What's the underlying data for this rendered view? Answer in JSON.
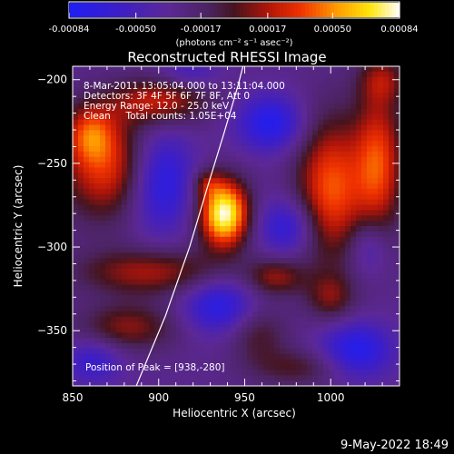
{
  "chart_data": {
    "type": "heatmap",
    "title": "Reconstructed RHESSI Image",
    "xlabel": "Heliocentric X (arcsec)",
    "ylabel": "Heliocentric Y (arcsec)",
    "xlim": [
      850,
      1040
    ],
    "ylim": [
      -383,
      -192
    ],
    "x_ticks": [
      850,
      900,
      950,
      1000
    ],
    "y_ticks": [
      -200,
      -250,
      -300,
      -350
    ],
    "colorbar": {
      "ticks": [
        "-0.00084",
        "-0.00050",
        "-0.00017",
        "0.00017",
        "0.00050",
        "0.00084"
      ],
      "range": [
        -0.00084,
        0.00084
      ],
      "unit_label": "(photons cm⁻² s⁻¹ asec⁻²)"
    },
    "info_lines": [
      "8-Mar-2011 13:05:04.000 to 13:11:04.000",
      "Detectors: 3F 4F 5F 6F 7F 8F, Att 0",
      "Energy Range: 12.0 - 25.0 keV",
      "Clean     Total counts: 1.05E+04"
    ],
    "peak_label": "Position of Peak = [938,-280]",
    "peak": {
      "x": 938,
      "y": -280,
      "value": 0.00084
    },
    "features": [
      {
        "x": 938,
        "y": -280,
        "sx": 10,
        "sy": 14,
        "a": 1.0
      },
      {
        "x": 928,
        "y": -262,
        "sx": 6,
        "sy": 6,
        "a": 0.25
      },
      {
        "x": 872,
        "y": -253,
        "sx": 20,
        "sy": 22,
        "a": 0.55
      },
      {
        "x": 860,
        "y": -232,
        "sx": 10,
        "sy": 12,
        "a": 0.4
      },
      {
        "x": 900,
        "y": -213,
        "sx": 20,
        "sy": 10,
        "a": 0.45
      },
      {
        "x": 1000,
        "y": -265,
        "sx": 14,
        "sy": 30,
        "a": 0.6
      },
      {
        "x": 1028,
        "y": -250,
        "sx": 10,
        "sy": 30,
        "a": 0.55
      },
      {
        "x": 895,
        "y": -315,
        "sx": 30,
        "sy": 10,
        "a": 0.4
      },
      {
        "x": 968,
        "y": -318,
        "sx": 12,
        "sy": 8,
        "a": 0.35
      },
      {
        "x": 882,
        "y": -348,
        "sx": 20,
        "sy": 10,
        "a": 0.35
      },
      {
        "x": 958,
        "y": -352,
        "sx": 12,
        "sy": 12,
        "a": 0.25
      },
      {
        "x": 1000,
        "y": -330,
        "sx": 10,
        "sy": 10,
        "a": 0.3
      },
      {
        "x": 982,
        "y": -372,
        "sx": 20,
        "sy": 8,
        "a": 0.25
      },
      {
        "x": 1030,
        "y": -200,
        "sx": 10,
        "sy": 10,
        "a": 0.3
      },
      {
        "x": 900,
        "y": -260,
        "sx": 14,
        "sy": 22,
        "a": -0.7
      },
      {
        "x": 965,
        "y": -226,
        "sx": 14,
        "sy": 12,
        "a": -0.6
      },
      {
        "x": 975,
        "y": -288,
        "sx": 12,
        "sy": 12,
        "a": -0.5
      },
      {
        "x": 935,
        "y": -335,
        "sx": 15,
        "sy": 12,
        "a": -0.55
      },
      {
        "x": 1015,
        "y": -362,
        "sx": 15,
        "sy": 12,
        "a": -0.6
      },
      {
        "x": 1022,
        "y": -300,
        "sx": 8,
        "sy": 12,
        "a": -0.35
      },
      {
        "x": 862,
        "y": -368,
        "sx": 12,
        "sy": 10,
        "a": -0.4
      },
      {
        "x": 918,
        "y": -196,
        "sx": 12,
        "sy": 6,
        "a": -0.3
      }
    ],
    "background": -0.35,
    "limb_curve": [
      {
        "x": 887,
        "y": -383
      },
      {
        "x": 904,
        "y": -341
      },
      {
        "x": 918,
        "y": -300
      },
      {
        "x": 929,
        "y": -262
      },
      {
        "x": 938,
        "y": -232
      },
      {
        "x": 946,
        "y": -204
      },
      {
        "x": 949,
        "y": -192
      }
    ]
  },
  "footer_date": "9-May-2022 18:49"
}
